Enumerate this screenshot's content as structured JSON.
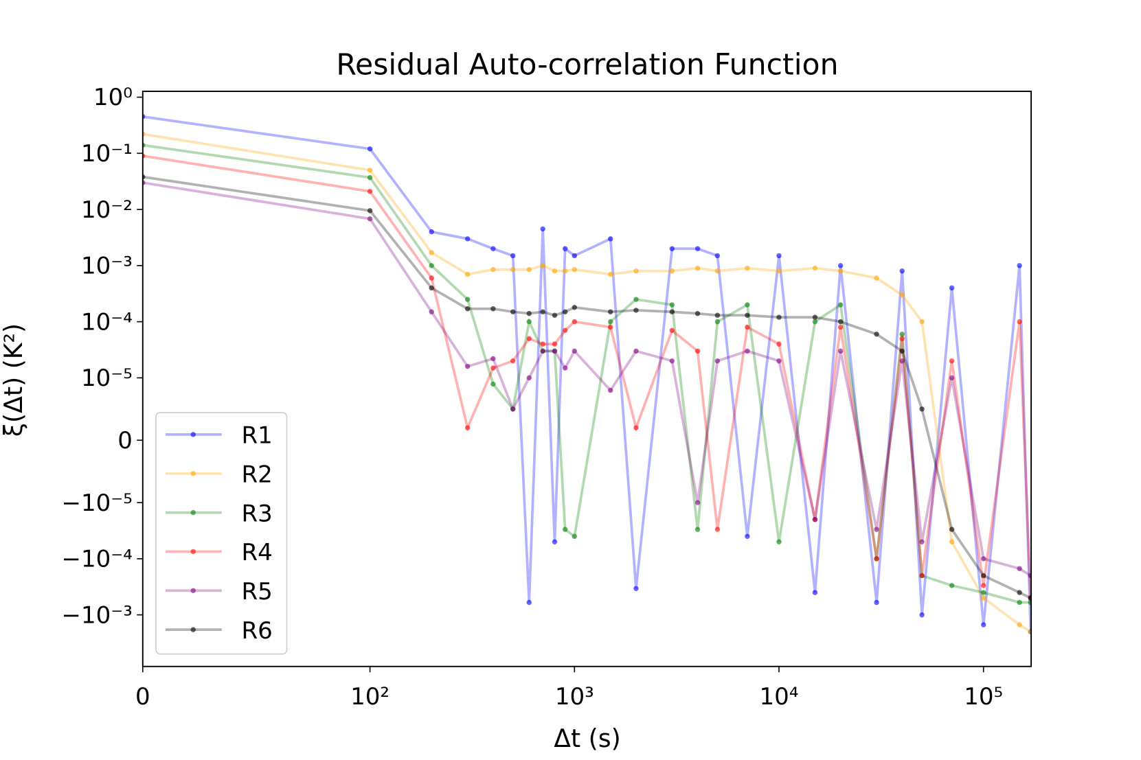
{
  "chart_data": {
    "type": "line",
    "title": "Residual Auto-correlation Function",
    "xlabel": "Δt (s)",
    "ylabel": "ξ(Δt) (K²)",
    "xscale": {
      "type": "symlog",
      "linthresh": 100
    },
    "yscale": {
      "type": "symlog",
      "linthresh": 1e-05
    },
    "xlim": [
      0,
      171000
    ],
    "ylim": [
      -0.0083,
      1.27
    ],
    "xticks": [
      0,
      {
        "value": 100,
        "label": "10²"
      },
      {
        "value": 1000,
        "label": "10³"
      },
      {
        "value": 10000,
        "label": "10⁴"
      },
      {
        "value": 100000,
        "label": "10⁵"
      }
    ],
    "yticks": [
      {
        "value": 1,
        "label": "10⁰"
      },
      {
        "value": 0.1,
        "label": "10⁻¹"
      },
      {
        "value": 0.01,
        "label": "10⁻²"
      },
      {
        "value": 0.001,
        "label": "10⁻³"
      },
      {
        "value": 0.0001,
        "label": "10⁻⁴"
      },
      {
        "value": 1e-05,
        "label": "10⁻⁵"
      },
      0,
      {
        "value": -1e-05,
        "label": "−10⁻⁵"
      },
      {
        "value": -0.0001,
        "label": "−10⁻⁴"
      },
      {
        "value": -0.001,
        "label": "−10⁻³"
      }
    ],
    "grid": false,
    "legend": "lower left",
    "x": [
      0,
      100,
      200,
      300,
      400,
      500,
      600,
      700,
      800,
      900,
      1000,
      1500,
      2000,
      3000,
      4000,
      5000,
      7000,
      10000,
      15000,
      20000,
      30000,
      40000,
      50000,
      70000,
      100000,
      150000,
      170000
    ],
    "series": [
      {
        "name": "R1",
        "color": "blue",
        "values": [
          0.45,
          0.12,
          0.004,
          0.003,
          0.002,
          0.0015,
          -0.0006,
          0.0045,
          -5e-05,
          0.002,
          0.0015,
          0.003,
          -0.00034,
          0.002,
          0.002,
          0.0015,
          -4e-05,
          0.0015,
          -0.0004,
          0.001,
          -0.0006,
          0.0008,
          -0.001,
          0.0004,
          -0.0015,
          0.001,
          -0.002
        ]
      },
      {
        "name": "R2",
        "color": "orange",
        "values": [
          0.22,
          0.05,
          0.0017,
          0.0007,
          0.00085,
          0.00085,
          0.00085,
          0.001,
          0.0008,
          0.0008,
          0.00085,
          0.0007,
          0.0008,
          0.0008,
          0.0009,
          0.0008,
          0.0009,
          0.0008,
          0.0009,
          0.0008,
          0.0006,
          0.0003,
          0.0001,
          -5e-05,
          -0.0005,
          -0.0015,
          -0.002
        ]
      },
      {
        "name": "R3",
        "color": "green",
        "values": [
          0.14,
          0.037,
          0.001,
          0.00025,
          9e-06,
          5e-06,
          0.0001,
          3e-05,
          3e-05,
          -3e-05,
          -4e-05,
          0.0001,
          0.00025,
          0.0002,
          -3e-05,
          0.0001,
          0.0002,
          -5e-05,
          0.0001,
          0.0002,
          -0.0001,
          6e-05,
          -0.0002,
          -0.0003,
          -0.0004,
          -0.0006,
          -0.0006
        ]
      },
      {
        "name": "R4",
        "color": "red",
        "values": [
          0.09,
          0.021,
          0.0006,
          2e-06,
          1.5e-05,
          2e-05,
          5e-05,
          4e-05,
          4e-05,
          7e-05,
          0.0001,
          8e-05,
          2e-06,
          7e-05,
          3e-05,
          -3e-05,
          8e-05,
          4e-05,
          -2e-05,
          8e-05,
          -0.0001,
          5e-05,
          -0.0002,
          2e-05,
          -0.0003,
          0.0001,
          -0.0005
        ]
      },
      {
        "name": "R5",
        "color": "purple",
        "values": [
          0.03,
          0.0068,
          0.00015,
          1.6e-05,
          2.2e-05,
          5e-06,
          1e-05,
          3e-05,
          3e-05,
          1.5e-05,
          3e-05,
          8e-06,
          3e-05,
          2e-05,
          -1e-05,
          2e-05,
          3e-05,
          2e-05,
          -2e-05,
          3e-05,
          -3e-05,
          2e-05,
          -5e-05,
          1e-05,
          -0.0001,
          -0.00015,
          -0.0002
        ]
      },
      {
        "name": "R6",
        "color": "black",
        "values": [
          0.038,
          0.0095,
          0.0004,
          0.00017,
          0.00017,
          0.00015,
          0.00014,
          0.00015,
          0.00013,
          0.00015,
          0.00018,
          0.00015,
          0.00016,
          0.00015,
          0.00014,
          0.00013,
          0.00013,
          0.00012,
          0.00012,
          0.0001,
          6e-05,
          3e-05,
          5e-06,
          -3e-05,
          -0.0002,
          -0.0004,
          -0.0005
        ]
      }
    ]
  }
}
